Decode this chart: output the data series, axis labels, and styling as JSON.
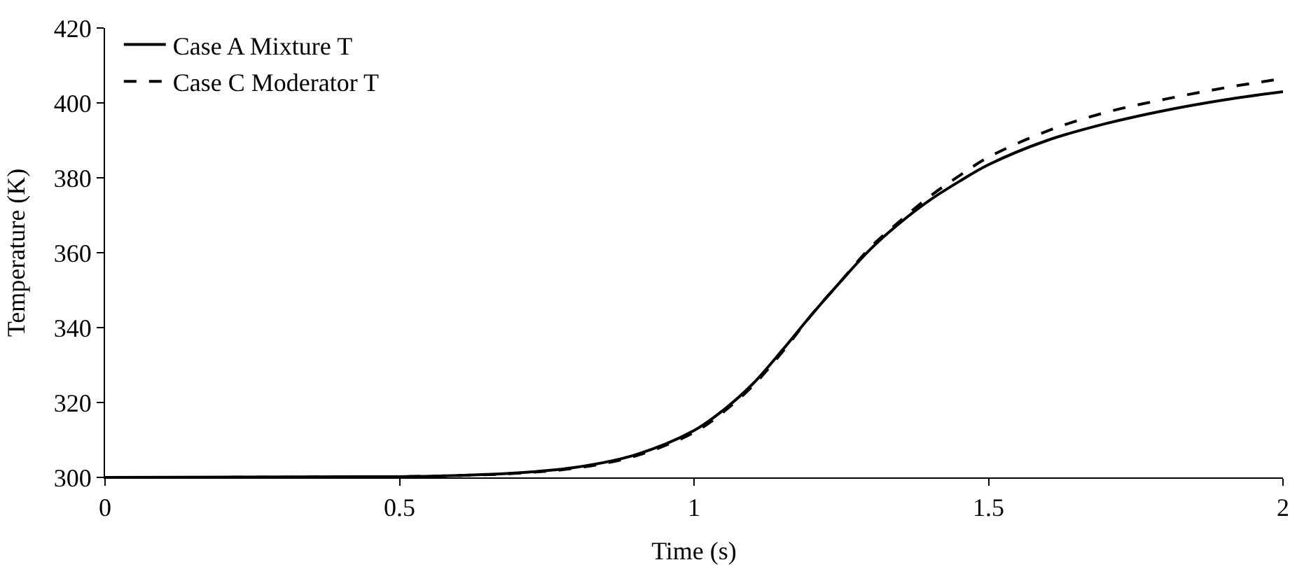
{
  "chart_data": {
    "type": "line",
    "xlabel": "Time (s)",
    "ylabel": "Temperature (K)",
    "xlim": [
      0,
      2
    ],
    "xticks": [
      0,
      0.5,
      1,
      1.5,
      2
    ],
    "ylim": [
      300,
      420
    ],
    "yticks": [
      300,
      320,
      340,
      360,
      380,
      400,
      420
    ],
    "legend": "top left",
    "marker": "none",
    "series": [
      {
        "name": "Case A Mixture T",
        "color": "#000000",
        "line_style": "solid",
        "x": [
          0,
          0.5,
          0.6,
          0.7,
          0.8,
          0.9,
          1.0,
          1.05,
          1.1,
          1.15,
          1.2,
          1.25,
          1.3,
          1.35,
          1.4,
          1.45,
          1.5,
          1.6,
          1.7,
          1.8,
          1.9,
          2.0
        ],
        "values": [
          300,
          300.2,
          300.5,
          301.2,
          302.7,
          306,
          312.5,
          318,
          325,
          334,
          343.5,
          352.5,
          361,
          368,
          374,
          379,
          383.5,
          390,
          394.5,
          398,
          400.8,
          403
        ]
      },
      {
        "name": "Case C Moderator T",
        "color": "#000000",
        "line_style": "dashed",
        "x": [
          0,
          0.5,
          0.6,
          0.7,
          0.8,
          0.9,
          1.0,
          1.05,
          1.1,
          1.15,
          1.2,
          1.25,
          1.3,
          1.35,
          1.4,
          1.45,
          1.5,
          1.6,
          1.7,
          1.8,
          1.9,
          2.0
        ],
        "values": [
          300,
          300.2,
          300.5,
          301.1,
          302.5,
          305.7,
          312,
          317.5,
          324.5,
          333.5,
          343.5,
          352.5,
          361.5,
          368.5,
          375,
          380.5,
          385.5,
          392.5,
          397.5,
          401,
          404,
          406.5
        ]
      }
    ]
  }
}
